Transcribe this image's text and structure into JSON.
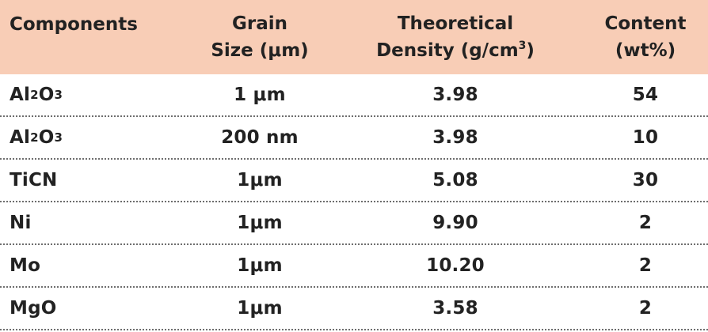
{
  "header": {
    "components": "Components",
    "grain_size": [
      "Grain",
      "Size (μm)"
    ],
    "density": [
      "Theoretical",
      "Density (g/cm",
      "3",
      ")"
    ],
    "content": [
      "Content",
      "(wt%)"
    ]
  },
  "rows": [
    {
      "name_base": "Al",
      "name_sub1": "2",
      "name_mid": "O",
      "name_sub2": "3",
      "grain": "1 μm",
      "density": "3.98",
      "content": "54"
    },
    {
      "name_base": "Al",
      "name_sub1": "2",
      "name_mid": "O",
      "name_sub2": "3",
      "grain": "200 nm",
      "density": "3.98",
      "content": "10"
    },
    {
      "name": "TiCN",
      "grain": "1μm",
      "density": "5.08",
      "content": "30"
    },
    {
      "name": "Ni",
      "grain": "1μm",
      "density": "9.90",
      "content": "2"
    },
    {
      "name": "Mo",
      "grain": "1μm",
      "density": "10.20",
      "content": "2"
    },
    {
      "name": "MgO",
      "grain": "1μm",
      "density": "3.58",
      "content": "2"
    }
  ],
  "colors": {
    "header_bg": "#f8cdb6",
    "text": "#222222",
    "divider": "#6e6e6e"
  }
}
